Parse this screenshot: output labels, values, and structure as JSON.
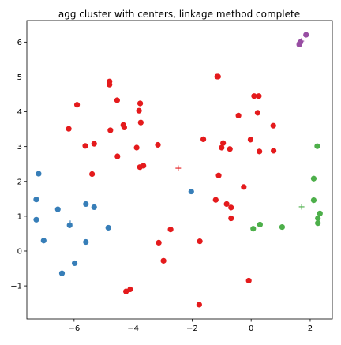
{
  "chart_data": {
    "type": "scatter",
    "title": "agg cluster with centers, linkage method complete",
    "xlabel": "",
    "ylabel": "",
    "xlim": [
      -7.6,
      2.75
    ],
    "ylim": [
      -1.95,
      6.62
    ],
    "xticks": [
      -6,
      -4,
      -2,
      0,
      2
    ],
    "yticks": [
      -1,
      0,
      1,
      2,
      3,
      4,
      5,
      6
    ],
    "xtick_labels": [
      "−6",
      "−4",
      "−2",
      "0",
      "2"
    ],
    "ytick_labels": [
      "−1",
      "0",
      "1",
      "2",
      "3",
      "4",
      "5",
      "6"
    ],
    "grid": false,
    "legend": "none",
    "series": [
      {
        "color": "#e41a1c",
        "points": [
          [
            -4.8,
            4.87
          ],
          [
            -4.8,
            4.78
          ],
          [
            -4.54,
            4.33
          ],
          [
            -5.9,
            4.2
          ],
          [
            -3.76,
            4.24
          ],
          [
            -3.8,
            4.03
          ],
          [
            -4.33,
            3.62
          ],
          [
            -4.3,
            3.55
          ],
          [
            -3.74,
            3.69
          ],
          [
            -6.18,
            3.51
          ],
          [
            -4.77,
            3.47
          ],
          [
            -5.32,
            3.08
          ],
          [
            -5.62,
            3.02
          ],
          [
            -3.88,
            2.97
          ],
          [
            -3.16,
            3.05
          ],
          [
            -4.53,
            2.72
          ],
          [
            -3.65,
            2.45
          ],
          [
            -3.77,
            2.41
          ],
          [
            -5.39,
            2.21
          ],
          [
            -1.62,
            3.21
          ],
          [
            -1.15,
            5.01
          ],
          [
            -1.12,
            5.01
          ],
          [
            -0.43,
            3.89
          ],
          [
            0.1,
            4.45
          ],
          [
            0.26,
            4.45
          ],
          [
            0.22,
            3.97
          ],
          [
            0.75,
            3.6
          ],
          [
            -0.02,
            3.2
          ],
          [
            -0.95,
            3.1
          ],
          [
            -1.0,
            2.97
          ],
          [
            -0.72,
            2.93
          ],
          [
            0.28,
            2.86
          ],
          [
            0.76,
            2.88
          ],
          [
            -1.1,
            2.17
          ],
          [
            -0.25,
            1.84
          ],
          [
            -1.2,
            1.47
          ],
          [
            -0.83,
            1.35
          ],
          [
            -0.68,
            1.25
          ],
          [
            -0.68,
            0.94
          ],
          [
            -2.73,
            0.62
          ],
          [
            -3.13,
            0.24
          ],
          [
            -1.74,
            0.28
          ],
          [
            -2.97,
            -0.28
          ],
          [
            -0.08,
            -0.85
          ],
          [
            -4.1,
            -1.1
          ],
          [
            -4.24,
            -1.16
          ],
          [
            -1.76,
            -1.54
          ]
        ]
      },
      {
        "color": "#377eb8",
        "points": [
          [
            -7.2,
            2.22
          ],
          [
            -7.28,
            1.48
          ],
          [
            -6.55,
            1.2
          ],
          [
            -7.28,
            0.9
          ],
          [
            -5.6,
            1.35
          ],
          [
            -5.32,
            1.26
          ],
          [
            -6.15,
            0.74
          ],
          [
            -4.84,
            0.67
          ],
          [
            -7.03,
            0.3
          ],
          [
            -5.6,
            0.26
          ],
          [
            -5.98,
            -0.35
          ],
          [
            -6.41,
            -0.64
          ],
          [
            -2.03,
            1.71
          ]
        ]
      },
      {
        "color": "#4daf4a",
        "points": [
          [
            2.24,
            3.01
          ],
          [
            2.12,
            2.08
          ],
          [
            2.12,
            1.46
          ],
          [
            2.33,
            1.08
          ],
          [
            2.26,
            0.94
          ],
          [
            2.26,
            0.8
          ],
          [
            0.3,
            0.76
          ],
          [
            1.05,
            0.69
          ],
          [
            0.07,
            0.64
          ]
        ]
      },
      {
        "color": "#984ea3",
        "points": [
          [
            1.86,
            6.21
          ],
          [
            1.67,
            6.0
          ],
          [
            1.64,
            5.96
          ],
          [
            1.63,
            5.93
          ]
        ]
      }
    ],
    "centers": [
      {
        "x": -2.47,
        "y": 2.38,
        "color": "#e41a1c"
      },
      {
        "x": -6.13,
        "y": 0.8,
        "color": "#377eb8"
      },
      {
        "x": 1.71,
        "y": 1.27,
        "color": "#4daf4a"
      },
      {
        "x": 1.7,
        "y": 6.03,
        "color": "#984ea3"
      }
    ]
  }
}
